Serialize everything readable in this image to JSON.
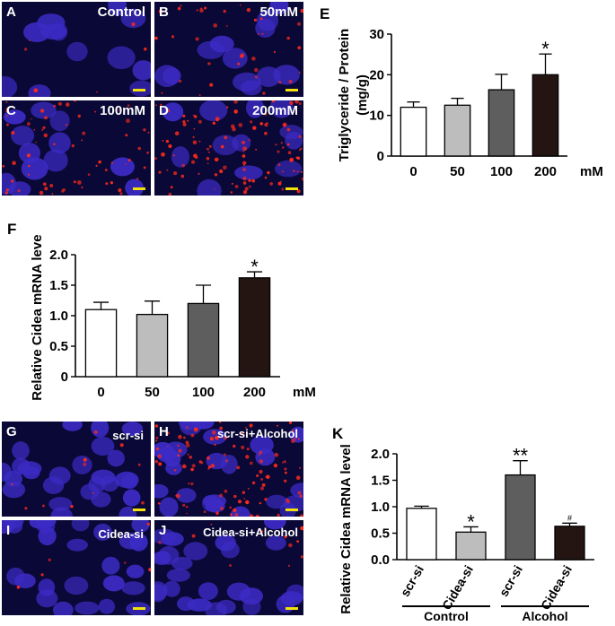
{
  "panels": {
    "A": {
      "letter": "A",
      "label": "Control",
      "density": 0.05
    },
    "B": {
      "letter": "B",
      "label": "50mM",
      "density": 0.35
    },
    "C": {
      "letter": "C",
      "label": "100mM",
      "density": 0.6
    },
    "D": {
      "letter": "D",
      "label": "200mM",
      "density": 1.0
    },
    "G": {
      "letter": "G",
      "label": "scr-si",
      "density": 0.1
    },
    "H": {
      "letter": "H",
      "label": "scr-si+Alcohol",
      "density": 1.0
    },
    "I": {
      "letter": "I",
      "label": "Cidea-si",
      "density": 0.05
    },
    "J": {
      "letter": "J",
      "label": "Cidea-si+Alcohol",
      "density": 0.1
    }
  },
  "chart_data": [
    {
      "panel": "E",
      "type": "bar",
      "categories": [
        "0",
        "50",
        "100",
        "200"
      ],
      "values": [
        12,
        12.5,
        16.3,
        20
      ],
      "errors": [
        1.3,
        1.7,
        3.8,
        5.1
      ],
      "significance": [
        "",
        "",
        "",
        "*"
      ],
      "colors": [
        "#ffffff",
        "#bdbdbd",
        "#5e5e5e",
        "#241512"
      ],
      "ylabel_line1": "Triglyceride / Protein",
      "ylabel_line2": "(mg/g)",
      "unit": "mM",
      "ylim": [
        0,
        30
      ],
      "yticks": [
        "0",
        "10",
        "20",
        "30"
      ]
    },
    {
      "panel": "F",
      "type": "bar",
      "categories": [
        "0",
        "50",
        "100",
        "200"
      ],
      "values": [
        1.1,
        1.02,
        1.2,
        1.62
      ],
      "errors": [
        0.12,
        0.22,
        0.3,
        0.1
      ],
      "significance": [
        "",
        "",
        "",
        "*"
      ],
      "colors": [
        "#ffffff",
        "#bdbdbd",
        "#5e5e5e",
        "#241512"
      ],
      "ylabel": "Relative  Cidea mRNA level",
      "unit": "mM",
      "ylim": [
        0,
        2.0
      ],
      "yticks": [
        "0",
        "0.5",
        "1.0",
        "1.5",
        "2.0"
      ]
    },
    {
      "panel": "K",
      "type": "bar",
      "categories": [
        "scr-si",
        "Cidea-si",
        "scr-si",
        "Cidea-si"
      ],
      "groups": [
        "Control",
        "Alcohol"
      ],
      "values": [
        0.97,
        0.52,
        1.6,
        0.63
      ],
      "errors": [
        0.04,
        0.1,
        0.27,
        0.06
      ],
      "significance": [
        "",
        "*",
        "**",
        "#"
      ],
      "colors": [
        "#ffffff",
        "#bdbdbd",
        "#5e5e5e",
        "#241512"
      ],
      "ylabel": "Relative  Cidea mRNA level",
      "ylim": [
        0,
        2.0
      ],
      "yticks": [
        "0.0",
        "0.5",
        "1.0",
        "1.5",
        "2.0"
      ]
    }
  ]
}
